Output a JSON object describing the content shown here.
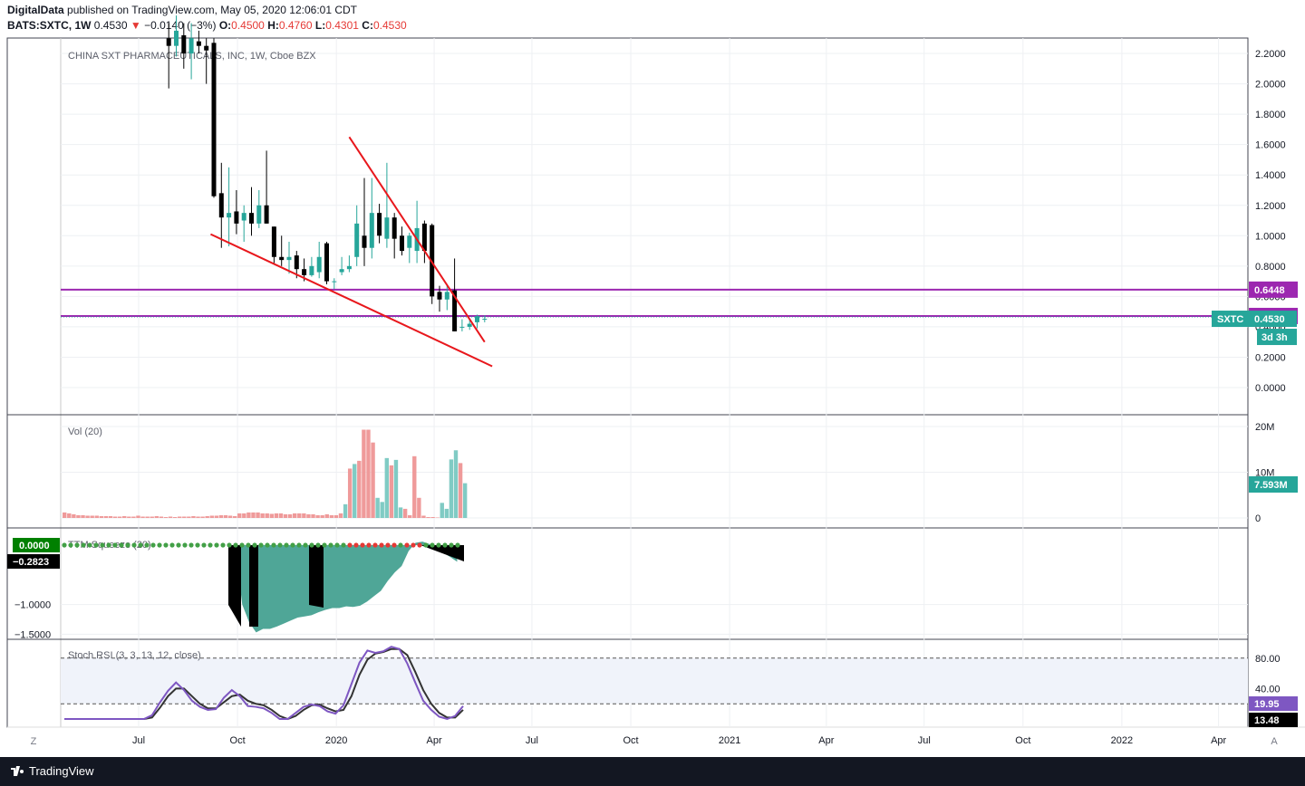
{
  "header": {
    "publisher": "DigitalData",
    "published_text": "published on TradingView.com, May 05, 2020 12:06:01 CDT",
    "ticker": "BATS:SXTC, 1W",
    "last": "0.4530",
    "change_arrow": "▼",
    "change": "−0.0140 (−3%)",
    "open_label": "O:",
    "open": "0.4500",
    "high_label": "H:",
    "high": "0.4760",
    "low_label": "L:",
    "low": "0.4301",
    "close_label": "C:",
    "close": "0.4530"
  },
  "footer": {
    "brand": "TradingView"
  },
  "corner_buttons": {
    "left": "Z",
    "right": "A"
  },
  "colors": {
    "up": "#26a69a",
    "down": "#000000",
    "vol_up": "#80cbc4",
    "vol_down": "#ef9a9a",
    "trendline": "#e8171c",
    "hline": "#9c27b0",
    "squeeze_fill": "#4fa697",
    "rsi_k": "#7e57c2",
    "rsi_d": "#333333"
  },
  "chart_data": [
    {
      "type": "candlestick",
      "title": "CHINA SXT PHARMACEUTICALS, INC, 1W, Cboe BZX",
      "symbol": "SXTC",
      "last_price": "0.4530",
      "countdown": "3d 3h",
      "ylim": [
        -0.05,
        2.3
      ],
      "y_ticks": [
        "2.2000",
        "2.0000",
        "1.8000",
        "1.6000",
        "1.4000",
        "1.2000",
        "1.0000",
        "0.8000",
        "0.6000",
        "0.4000",
        "0.2000",
        "0.0000"
      ],
      "x_ticks": [
        "Jul",
        "Oct",
        "2020",
        "Apr",
        "Jul",
        "Oct",
        "2021",
        "Apr",
        "Jul",
        "Oct",
        "2022",
        "Apr"
      ],
      "horizontal_levels": [
        {
          "price": 0.6448,
          "label": "0.6448"
        },
        {
          "price": 0.4714,
          "label": "0.4714"
        }
      ],
      "trendlines": [
        {
          "from": [
            "2019-09-06",
            1.01
          ],
          "to": [
            "2020-05-25",
            0.14
          ]
        },
        {
          "from": [
            "2020-01-13",
            1.65
          ],
          "to": [
            "2020-05-18",
            0.3
          ]
        }
      ],
      "candles": [
        {
          "d": "2019-07-29",
          "o": 2.3,
          "h": 2.4,
          "l": 1.97,
          "c": 2.25
        },
        {
          "d": "2019-08-05",
          "o": 2.25,
          "h": 2.45,
          "l": 2.18,
          "c": 2.35
        },
        {
          "d": "2019-08-12",
          "o": 2.32,
          "h": 2.4,
          "l": 2.1,
          "c": 2.2
        },
        {
          "d": "2019-08-19",
          "o": 2.2,
          "h": 2.4,
          "l": 2.03,
          "c": 2.3
        },
        {
          "d": "2019-08-26",
          "o": 2.28,
          "h": 2.35,
          "l": 2.2,
          "c": 2.25
        },
        {
          "d": "2019-09-02",
          "o": 2.25,
          "h": 2.3,
          "l": 2.0,
          "c": 2.22
        },
        {
          "d": "2019-09-09",
          "o": 2.27,
          "h": 2.3,
          "l": 1.25,
          "c": 1.26
        },
        {
          "d": "2019-09-16",
          "o": 1.28,
          "h": 1.48,
          "l": 0.92,
          "c": 1.12
        },
        {
          "d": "2019-09-23",
          "o": 1.12,
          "h": 1.45,
          "l": 0.93,
          "c": 1.15
        },
        {
          "d": "2019-09-30",
          "o": 1.16,
          "h": 1.3,
          "l": 1.01,
          "c": 1.08
        },
        {
          "d": "2019-10-07",
          "o": 1.1,
          "h": 1.2,
          "l": 0.96,
          "c": 1.15
        },
        {
          "d": "2019-10-14",
          "o": 1.15,
          "h": 1.32,
          "l": 1.0,
          "c": 1.08
        },
        {
          "d": "2019-10-21",
          "o": 1.08,
          "h": 1.3,
          "l": 1.05,
          "c": 1.2
        },
        {
          "d": "2019-10-28",
          "o": 1.2,
          "h": 1.56,
          "l": 1.08,
          "c": 1.08
        },
        {
          "d": "2019-11-04",
          "o": 1.06,
          "h": 1.06,
          "l": 0.82,
          "c": 0.86
        },
        {
          "d": "2019-11-11",
          "o": 0.86,
          "h": 1.0,
          "l": 0.8,
          "c": 0.84
        },
        {
          "d": "2019-11-18",
          "o": 0.84,
          "h": 0.96,
          "l": 0.75,
          "c": 0.86
        },
        {
          "d": "2019-11-25",
          "o": 0.87,
          "h": 0.9,
          "l": 0.72,
          "c": 0.78
        },
        {
          "d": "2019-12-02",
          "o": 0.78,
          "h": 0.85,
          "l": 0.7,
          "c": 0.74
        },
        {
          "d": "2019-12-09",
          "o": 0.74,
          "h": 0.86,
          "l": 0.73,
          "c": 0.8
        },
        {
          "d": "2019-12-16",
          "o": 0.76,
          "h": 0.96,
          "l": 0.72,
          "c": 0.86
        },
        {
          "d": "2019-12-23",
          "o": 0.95,
          "h": 0.96,
          "l": 0.68,
          "c": 0.7
        },
        {
          "d": "2019-12-30",
          "o": 0.7,
          "h": 0.72,
          "l": 0.65,
          "c": 0.7
        },
        {
          "d": "2020-01-06",
          "o": 0.76,
          "h": 0.86,
          "l": 0.74,
          "c": 0.78
        },
        {
          "d": "2020-01-13",
          "o": 0.78,
          "h": 0.87,
          "l": 0.76,
          "c": 0.8
        },
        {
          "d": "2020-01-20",
          "o": 0.86,
          "h": 1.2,
          "l": 0.8,
          "c": 1.08
        },
        {
          "d": "2020-01-27",
          "o": 1.0,
          "h": 1.38,
          "l": 0.8,
          "c": 0.92
        },
        {
          "d": "2020-02-03",
          "o": 0.92,
          "h": 1.38,
          "l": 0.85,
          "c": 1.15
        },
        {
          "d": "2020-02-10",
          "o": 1.15,
          "h": 1.21,
          "l": 0.95,
          "c": 1.0
        },
        {
          "d": "2020-02-17",
          "o": 0.98,
          "h": 1.48,
          "l": 0.92,
          "c": 1.12
        },
        {
          "d": "2020-02-24",
          "o": 1.12,
          "h": 1.15,
          "l": 0.85,
          "c": 0.98
        },
        {
          "d": "2020-03-02",
          "o": 1.0,
          "h": 1.06,
          "l": 0.87,
          "c": 0.9
        },
        {
          "d": "2020-03-09",
          "o": 0.92,
          "h": 1.02,
          "l": 0.82,
          "c": 1.0
        },
        {
          "d": "2020-03-16",
          "o": 0.9,
          "h": 1.23,
          "l": 0.82,
          "c": 1.05
        },
        {
          "d": "2020-03-23",
          "o": 1.08,
          "h": 1.1,
          "l": 0.82,
          "c": 0.9
        },
        {
          "d": "2020-03-30",
          "o": 1.07,
          "h": 1.08,
          "l": 0.55,
          "c": 0.6
        },
        {
          "d": "2020-04-06",
          "o": 0.63,
          "h": 0.67,
          "l": 0.5,
          "c": 0.58
        },
        {
          "d": "2020-04-13",
          "o": 0.58,
          "h": 0.67,
          "l": 0.51,
          "c": 0.63
        },
        {
          "d": "2020-04-20",
          "o": 0.64,
          "h": 0.85,
          "l": 0.37,
          "c": 0.37
        },
        {
          "d": "2020-04-27",
          "o": 0.4,
          "h": 0.45,
          "l": 0.37,
          "c": 0.4
        },
        {
          "d": "2020-05-04",
          "o": 0.4,
          "h": 0.45,
          "l": 0.38,
          "c": 0.42
        },
        {
          "d": "2020-05-11",
          "o": 0.43,
          "h": 0.48,
          "l": 0.39,
          "c": 0.47
        },
        {
          "d": "2020-05-18",
          "o": 0.45,
          "h": 0.476,
          "l": 0.4301,
          "c": 0.453
        }
      ]
    },
    {
      "type": "bar",
      "title": "Vol (20)",
      "last_value": "7.593M",
      "y_ticks": [
        "20M",
        "10M",
        "0"
      ],
      "ylim": [
        0,
        20
      ],
      "values_millions": [
        1.2,
        1.0,
        0.8,
        0.6,
        0.6,
        0.5,
        0.5,
        0.5,
        0.4,
        0.4,
        0.4,
        0.3,
        0.3,
        0.4,
        0.3,
        0.3,
        0.5,
        0.3,
        0.3,
        0.3,
        0.4,
        0.3,
        0.2,
        0.3,
        0.2,
        0.3,
        0.3,
        0.3,
        0.4,
        0.3,
        0.3,
        0.4,
        0.5,
        0.5,
        0.6,
        0.6,
        0.5,
        0.4,
        1.0,
        1.0,
        1.2,
        1.2,
        1.2,
        1.0,
        1.0,
        0.9,
        1.0,
        1.0,
        0.8,
        0.8,
        1.0,
        1.0,
        1.0,
        0.8,
        0.8,
        0.6,
        0.6,
        0.8,
        0.6,
        0.6,
        1.0,
        3.0,
        10.8,
        11.8,
        12.5,
        19.3,
        19.3,
        16.5,
        4.4,
        3.5,
        13.1,
        11.5,
        12.7,
        2.3,
        2.0,
        0.6,
        13.5,
        4.4,
        0.5,
        0.2,
        0.2,
        0.1,
        3.3,
        2.0,
        12.8,
        14.8,
        12.0,
        7.6
      ],
      "vol_up": [
        false,
        false,
        false,
        false,
        false,
        false,
        false,
        false,
        false,
        false,
        false,
        false,
        false,
        false,
        false,
        false,
        false,
        false,
        false,
        false,
        false,
        false,
        false,
        false,
        false,
        false,
        false,
        false,
        false,
        false,
        false,
        false,
        false,
        false,
        false,
        false,
        false,
        false,
        false,
        false,
        false,
        false,
        false,
        false,
        false,
        false,
        false,
        false,
        false,
        false,
        false,
        false,
        false,
        false,
        false,
        false,
        false,
        false,
        false,
        false,
        false,
        true,
        false,
        true,
        false,
        false,
        false,
        false,
        true,
        true,
        true,
        false,
        true,
        true,
        false,
        false,
        false,
        false,
        false,
        false,
        false,
        false,
        true,
        true,
        true,
        true,
        false,
        true
      ]
    },
    {
      "type": "area",
      "title": "TTM Squeeze (20)",
      "last_value": "0.0000",
      "second_value": "−0.2823",
      "y_ticks": [
        "−1.0000",
        "−1.5000"
      ],
      "ylim": [
        -1.6,
        0.1
      ]
    },
    {
      "type": "line",
      "title": "Stoch RSI (3, 3, 13, 12, close)",
      "k_last": "19.95",
      "d_last": "13.48",
      "y_ticks": [
        "80.00",
        "40.00"
      ],
      "ylim": [
        0,
        100
      ],
      "bands": [
        80,
        20
      ]
    }
  ]
}
